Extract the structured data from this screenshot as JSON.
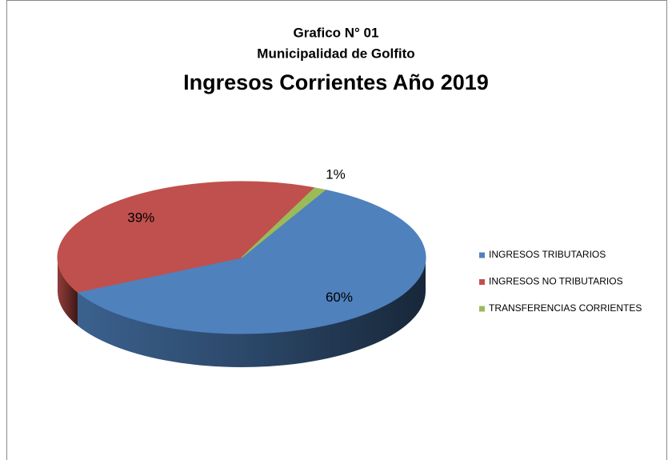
{
  "chart_data": {
    "type": "pie",
    "supertitle": [
      "Grafico N° 01",
      "Municipalidad  de Golfito"
    ],
    "title": "Ingresos Corrientes Año 2019",
    "categories": [
      "INGRESOS TRIBUTARIOS",
      "INGRESOS NO TRIBUTARIOS",
      "TRANSFERENCIAS CORRIENTES"
    ],
    "values": [
      60,
      39,
      1
    ],
    "value_labels": [
      "60%",
      "39%",
      "1%"
    ],
    "colors": [
      "#4f81bd",
      "#c0504d",
      "#9bbb59"
    ],
    "legend": "right"
  }
}
